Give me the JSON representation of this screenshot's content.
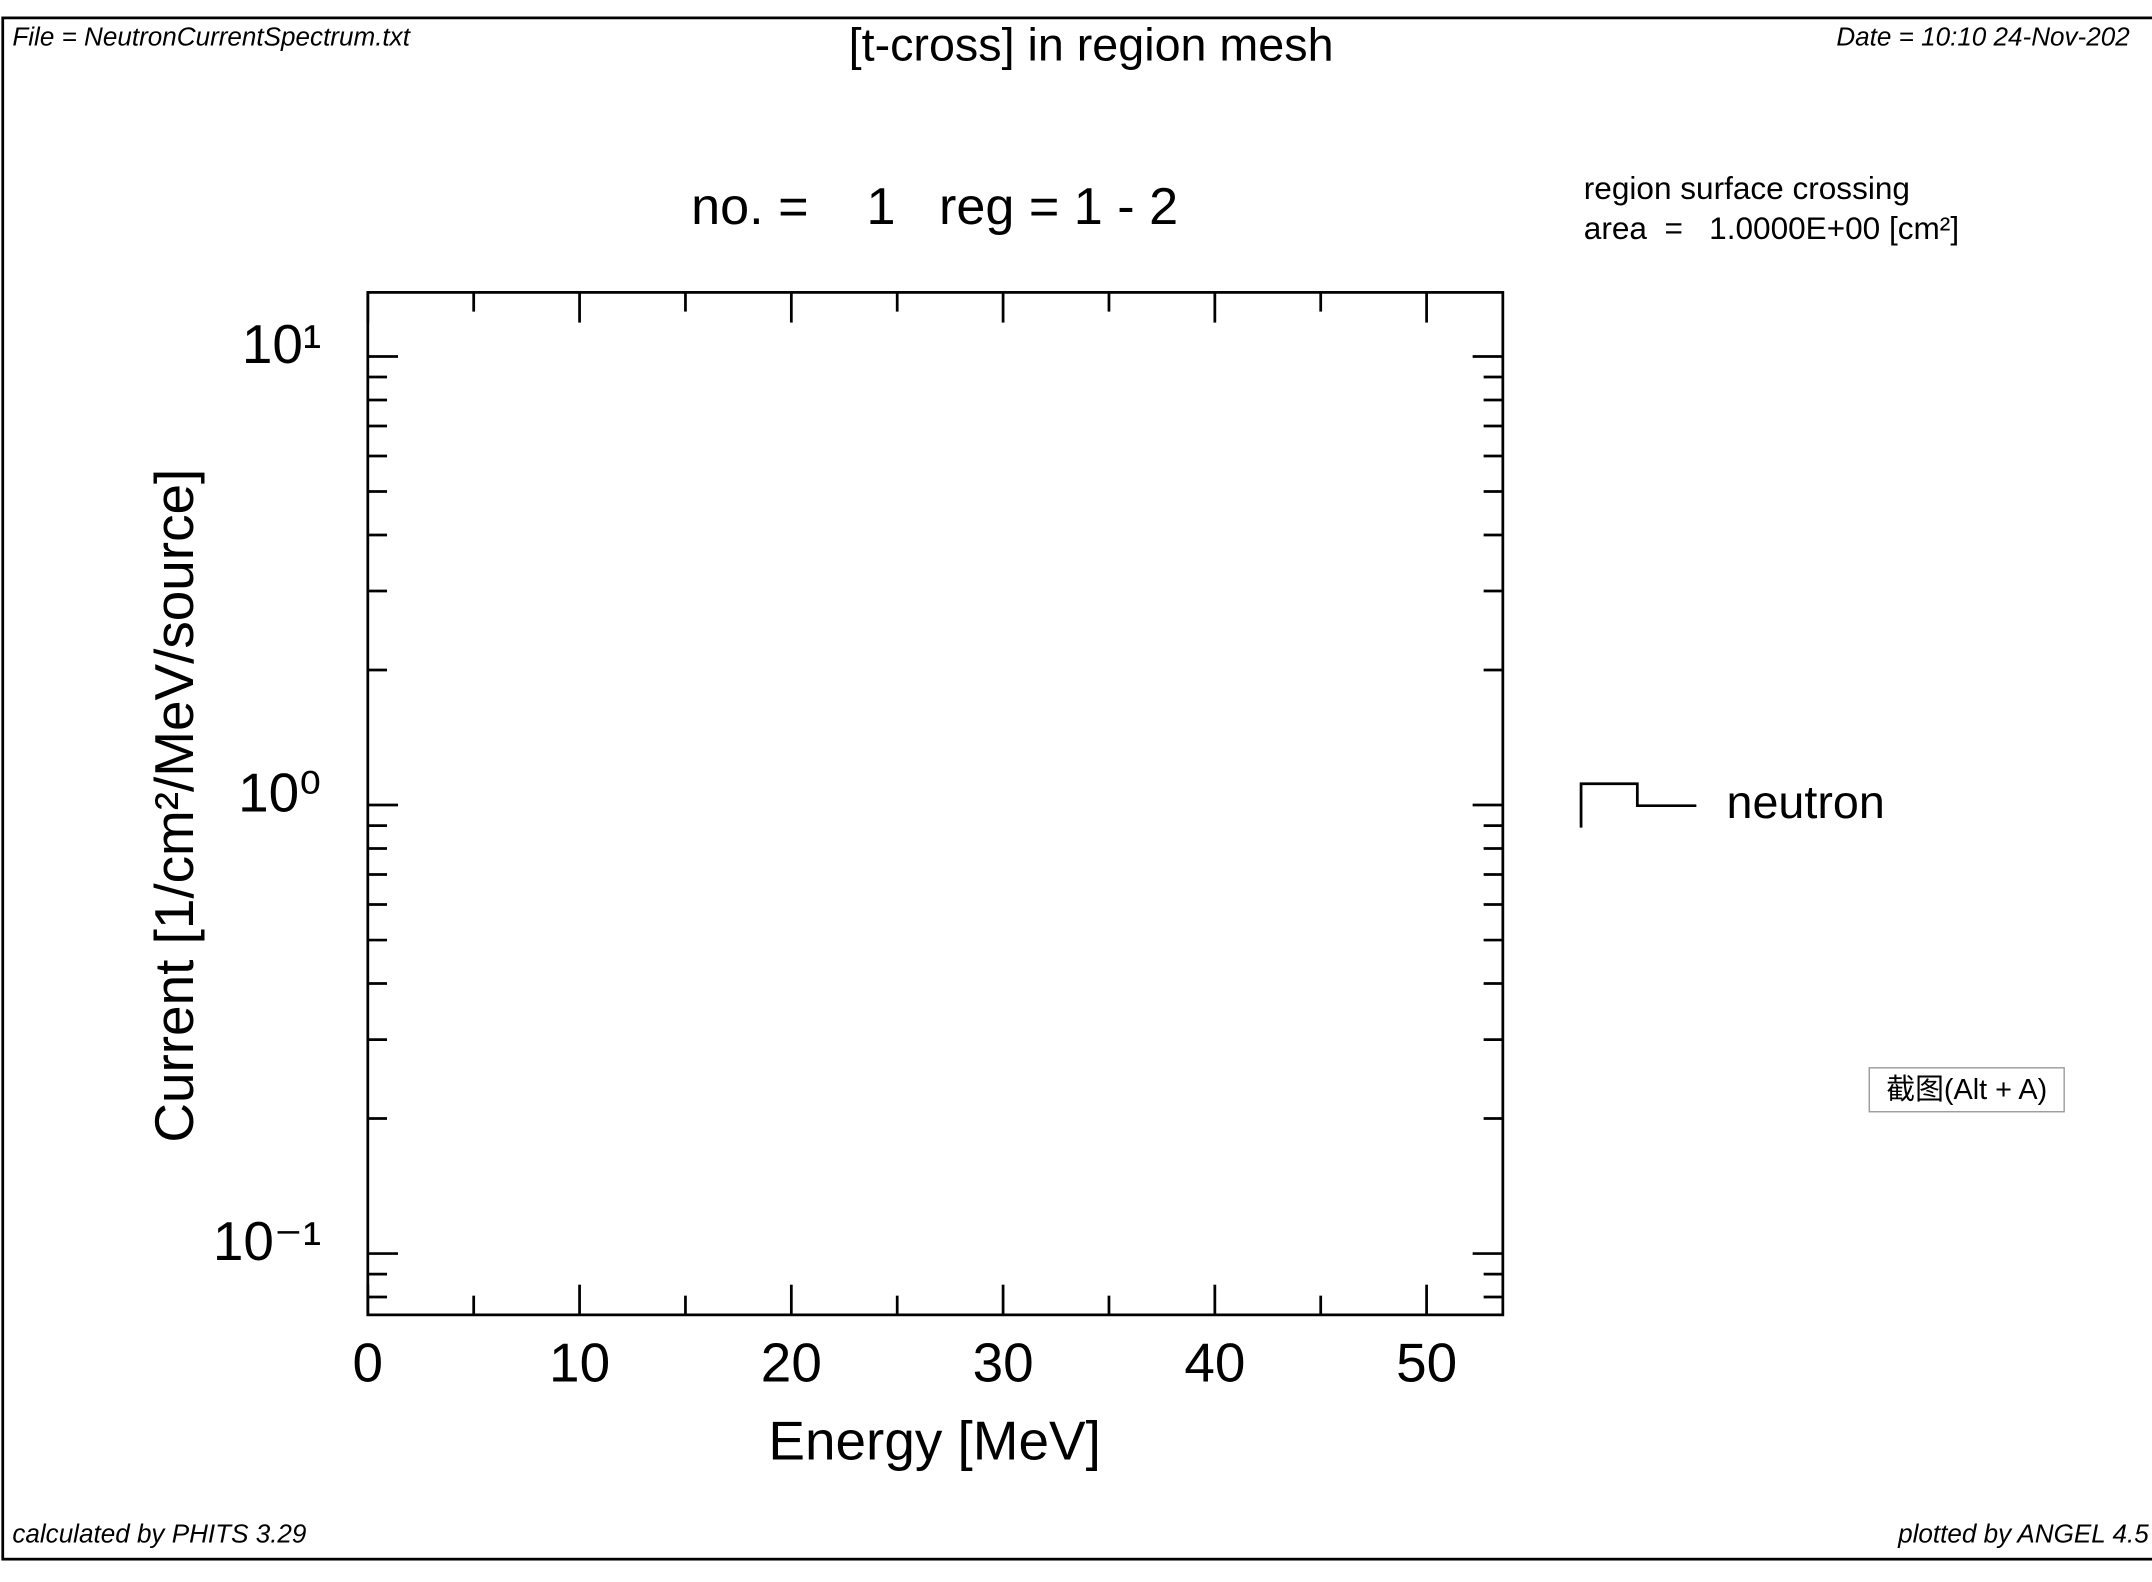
{
  "chart_data": {
    "type": "line",
    "title": "[t-cross] in region mesh",
    "subtitle": "no. =    1   reg = 1 - 2",
    "file_label": "File = NeutronCurrentSpectrum.txt",
    "date_label": "Date = 10:10 24-Nov-202",
    "notes": [
      "region surface crossing",
      "area  =   1.0000E+00 [cm²]"
    ],
    "footer_left": "calculated by PHITS 3.29",
    "footer_right": "plotted by ANGEL 4.5",
    "tooltip": "截图(Alt + A)",
    "xlabel": "Energy [MeV]",
    "ylabel": "Current [1/cm²/MeV/source]",
    "x": [],
    "series": [
      {
        "name": "neutron",
        "color": "#000000",
        "values": []
      }
    ],
    "xlim": [
      0,
      53.6
    ],
    "xticks": [
      0,
      10,
      20,
      30,
      40,
      50
    ],
    "xminorticks": [
      5,
      15,
      25,
      35,
      45
    ],
    "ylim": [
      0.073,
      13.9
    ],
    "ylog": true,
    "yticks": [
      {
        "value": 0.1,
        "label": "10⁻¹"
      },
      {
        "value": 1,
        "label": "10⁰"
      },
      {
        "value": 10,
        "label": "10¹"
      }
    ],
    "yminorticks": [
      0.08,
      0.09,
      0.2,
      0.3,
      0.4,
      0.5,
      0.6,
      0.7,
      0.8,
      0.9,
      2,
      3,
      4,
      5,
      6,
      7,
      8,
      9
    ],
    "grid": false,
    "legend": "right"
  }
}
